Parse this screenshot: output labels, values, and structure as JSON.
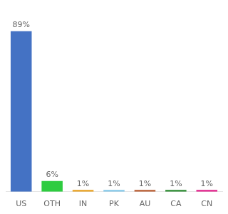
{
  "chart_data": {
    "type": "bar",
    "categories": [
      "US",
      "OTH",
      "IN",
      "PK",
      "AU",
      "CA",
      "CN"
    ],
    "values": [
      89,
      6,
      1,
      1,
      1,
      1,
      1
    ],
    "value_labels": [
      "89%",
      "6%",
      "1%",
      "1%",
      "1%",
      "1%",
      "1%"
    ],
    "colors": [
      "#4472c4",
      "#2ecc40",
      "#e8a020",
      "#85c8e8",
      "#b85c30",
      "#2a8a30",
      "#e0208a"
    ],
    "ylim": [
      0,
      100
    ],
    "grid": false,
    "data_labels": true,
    "tick_labels": "x"
  }
}
